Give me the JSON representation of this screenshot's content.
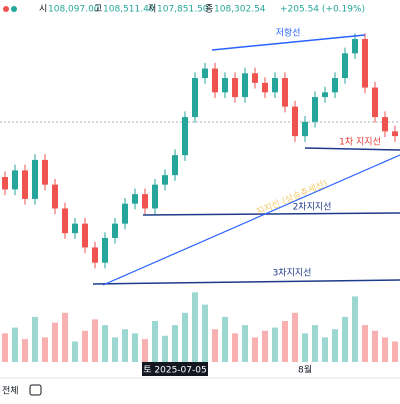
{
  "header": {
    "open_label": "시",
    "open": "108,097.00",
    "high_label": "고",
    "high": "108,511.40",
    "low_label": "저",
    "low": "107,851.50",
    "close_label": "종",
    "close": "108,302.54",
    "change": "+205.54 (+0.19%)"
  },
  "annotations": {
    "resistance": "저항선",
    "support1": "1차 지지선",
    "support2": "2차지지선",
    "support3": "3차지지선",
    "trendline": "지지선 (상승추세선)"
  },
  "toolbar": {
    "range": "전체"
  },
  "chart_data": [
    {
      "type": "candlestick",
      "categories": [
        null,
        null,
        null,
        null,
        null,
        null,
        null,
        null,
        null,
        null,
        null,
        null,
        null,
        null,
        null,
        null,
        null,
        "토 2025-07-05",
        null,
        null,
        null,
        null,
        null,
        null,
        null,
        null,
        null,
        null,
        null,
        null,
        "8월",
        null,
        null,
        null,
        null,
        null,
        null,
        null,
        null,
        null
      ],
      "open": [
        108500,
        107200,
        109200,
        106200,
        110300,
        107700,
        105200,
        102600,
        103600,
        101100,
        99500,
        102100,
        103600,
        105700,
        106700,
        105200,
        107700,
        108700,
        110800,
        114800,
        118900,
        119900,
        117400,
        118900,
        116900,
        119400,
        118400,
        117400,
        118900,
        115900,
        112800,
        114300,
        116900,
        117400,
        118900,
        121500,
        123000,
        117900,
        114800,
        113300
      ],
      "high": [
        109100,
        109800,
        109800,
        110900,
        110900,
        108300,
        105800,
        104200,
        104200,
        101700,
        102700,
        104200,
        106300,
        107300,
        107300,
        108300,
        109300,
        111400,
        115400,
        119500,
        120500,
        120500,
        119500,
        119500,
        120000,
        120000,
        119000,
        119500,
        119500,
        116500,
        114900,
        117500,
        118000,
        119500,
        122100,
        123600,
        123600,
        118500,
        115400,
        113900
      ],
      "low": [
        106600,
        106600,
        105600,
        105600,
        107100,
        104600,
        102000,
        102000,
        100500,
        98900,
        98900,
        101500,
        103000,
        105100,
        104600,
        104600,
        107100,
        108100,
        110200,
        114200,
        118300,
        116800,
        116800,
        116300,
        116300,
        117800,
        116800,
        116800,
        115300,
        112200,
        112200,
        113700,
        116300,
        116800,
        118300,
        120900,
        117300,
        114200,
        112700,
        112200
      ],
      "close": [
        107200,
        109200,
        106200,
        110300,
        107700,
        105200,
        102600,
        103600,
        101100,
        99500,
        102100,
        103600,
        105700,
        106700,
        105200,
        107700,
        108700,
        110800,
        114800,
        118900,
        119900,
        117400,
        118900,
        116900,
        119400,
        118400,
        117400,
        118900,
        115900,
        112800,
        114300,
        116900,
        117400,
        118900,
        121500,
        123000,
        117900,
        114800,
        113300,
        112800
      ],
      "up_color": "#26a69a",
      "down_color": "#ef5350",
      "ylim": [
        96000,
        125000
      ]
    },
    {
      "type": "bar",
      "values": [
        35,
        42,
        28,
        55,
        30,
        48,
        60,
        25,
        38,
        52,
        45,
        30,
        40,
        35,
        28,
        50,
        32,
        45,
        60,
        85,
        70,
        40,
        55,
        35,
        45,
        30,
        38,
        42,
        50,
        60,
        35,
        45,
        30,
        40,
        55,
        80,
        45,
        38,
        30,
        25
      ],
      "ylim": [
        0,
        100
      ]
    }
  ]
}
